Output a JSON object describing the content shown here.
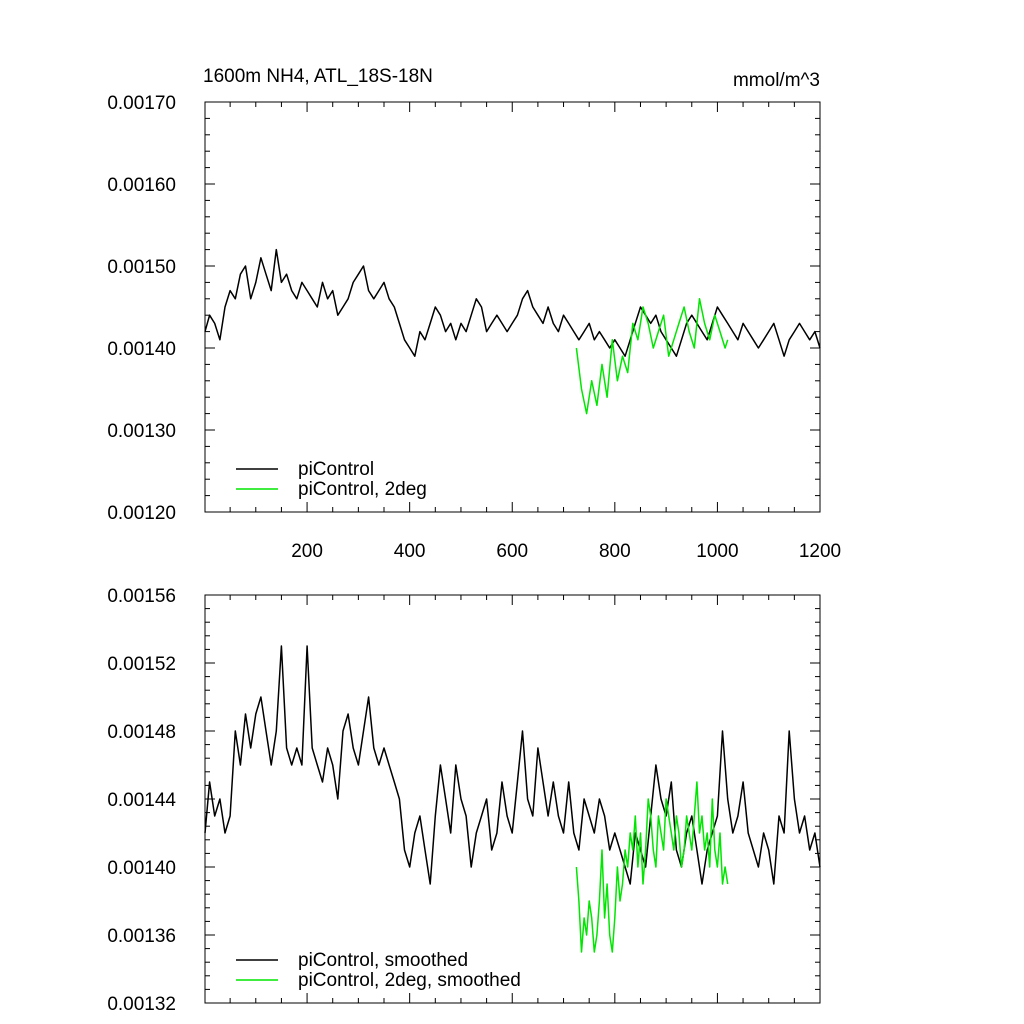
{
  "chart_data": [
    {
      "type": "line",
      "title": "1600m NH4, ATL_18S-18N",
      "units": "mmol/m^3",
      "xlim": [
        1,
        1200
      ],
      "ylim": [
        0.0012,
        0.0017
      ],
      "yticks": [
        "0.00120",
        "0.00130",
        "0.00140",
        "0.00150",
        "0.00160",
        "0.00170"
      ],
      "xticks": [
        "200",
        "400",
        "600",
        "800",
        "1000",
        "1200"
      ],
      "legend_position": "bottom-left",
      "series": [
        {
          "name": "piControl",
          "color": "#000000",
          "x": [
            1,
            10,
            20,
            30,
            40,
            50,
            60,
            70,
            80,
            90,
            100,
            110,
            120,
            130,
            140,
            150,
            160,
            170,
            180,
            190,
            200,
            210,
            220,
            230,
            240,
            250,
            260,
            270,
            280,
            290,
            300,
            310,
            320,
            330,
            340,
            350,
            360,
            370,
            380,
            390,
            400,
            410,
            420,
            430,
            440,
            450,
            460,
            470,
            480,
            490,
            500,
            510,
            520,
            530,
            540,
            550,
            560,
            570,
            580,
            590,
            600,
            610,
            620,
            630,
            640,
            650,
            660,
            670,
            680,
            690,
            700,
            710,
            720,
            730,
            740,
            750,
            760,
            770,
            780,
            790,
            800,
            810,
            820,
            830,
            840,
            850,
            860,
            870,
            880,
            890,
            900,
            910,
            920,
            930,
            940,
            950,
            960,
            970,
            980,
            990,
            1000,
            1010,
            1020,
            1030,
            1040,
            1050,
            1060,
            1070,
            1080,
            1090,
            1100,
            1110,
            1120,
            1130,
            1140,
            1150,
            1160,
            1170,
            1180,
            1190,
            1200
          ],
          "y": [
            0.00142,
            0.00144,
            0.00143,
            0.00141,
            0.00145,
            0.00147,
            0.00146,
            0.00149,
            0.0015,
            0.00146,
            0.00148,
            0.00151,
            0.00149,
            0.00147,
            0.00152,
            0.00148,
            0.00149,
            0.00147,
            0.00146,
            0.00148,
            0.00147,
            0.00146,
            0.00145,
            0.00148,
            0.00146,
            0.00147,
            0.00144,
            0.00145,
            0.00146,
            0.00148,
            0.00149,
            0.0015,
            0.00147,
            0.00146,
            0.00147,
            0.00148,
            0.00146,
            0.00145,
            0.00143,
            0.00141,
            0.0014,
            0.00139,
            0.00142,
            0.00141,
            0.00143,
            0.00145,
            0.00144,
            0.00142,
            0.00143,
            0.00141,
            0.00143,
            0.00142,
            0.00144,
            0.00146,
            0.00145,
            0.00142,
            0.00143,
            0.00144,
            0.00143,
            0.00142,
            0.00143,
            0.00144,
            0.00146,
            0.00147,
            0.00145,
            0.00144,
            0.00143,
            0.00145,
            0.00143,
            0.00142,
            0.00144,
            0.00143,
            0.00142,
            0.00141,
            0.00142,
            0.00143,
            0.00141,
            0.00142,
            0.00141,
            0.0014,
            0.00141,
            0.0014,
            0.00139,
            0.00141,
            0.00143,
            0.00145,
            0.00144,
            0.00143,
            0.00144,
            0.00142,
            0.00141,
            0.0014,
            0.00139,
            0.00141,
            0.00143,
            0.00144,
            0.00143,
            0.00142,
            0.00141,
            0.00143,
            0.00145,
            0.00144,
            0.00143,
            0.00142,
            0.00141,
            0.00143,
            0.00142,
            0.00141,
            0.0014,
            0.00141,
            0.00142,
            0.00143,
            0.00141,
            0.00139,
            0.00141,
            0.00142,
            0.00143,
            0.00142,
            0.00141,
            0.00142,
            0.0014
          ]
        },
        {
          "name": "piControl, 2deg",
          "color": "#00e600",
          "x": [
            725,
            735,
            745,
            755,
            765,
            775,
            785,
            795,
            805,
            815,
            825,
            835,
            845,
            855,
            865,
            875,
            885,
            895,
            905,
            915,
            925,
            935,
            945,
            955,
            965,
            975,
            985,
            995,
            1005,
            1015,
            1020
          ],
          "y": [
            0.0014,
            0.00135,
            0.00132,
            0.00136,
            0.00133,
            0.00138,
            0.00134,
            0.00141,
            0.00136,
            0.00139,
            0.00137,
            0.00143,
            0.00141,
            0.00145,
            0.00143,
            0.0014,
            0.00142,
            0.00144,
            0.00139,
            0.00141,
            0.00143,
            0.00145,
            0.00142,
            0.0014,
            0.00146,
            0.00143,
            0.00141,
            0.00144,
            0.00142,
            0.0014,
            0.00141
          ]
        }
      ]
    },
    {
      "type": "line",
      "title": "",
      "xlim": [
        1,
        1200
      ],
      "ylim": [
        0.00132,
        0.00156
      ],
      "yticks": [
        "0.00132",
        "0.00136",
        "0.00140",
        "0.00144",
        "0.00148",
        "0.00152",
        "0.00156"
      ],
      "legend_position": "bottom-left",
      "series": [
        {
          "name": "piControl, smoothed",
          "color": "#000000",
          "x": [
            1,
            10,
            20,
            30,
            40,
            50,
            60,
            70,
            80,
            90,
            100,
            110,
            120,
            130,
            140,
            150,
            160,
            170,
            180,
            190,
            200,
            210,
            220,
            230,
            240,
            250,
            260,
            270,
            280,
            290,
            300,
            310,
            320,
            330,
            340,
            350,
            360,
            370,
            380,
            390,
            400,
            410,
            420,
            430,
            440,
            450,
            460,
            470,
            480,
            490,
            500,
            510,
            520,
            530,
            540,
            550,
            560,
            570,
            580,
            590,
            600,
            610,
            620,
            630,
            640,
            650,
            660,
            670,
            680,
            690,
            700,
            710,
            720,
            730,
            740,
            750,
            760,
            770,
            780,
            790,
            800,
            810,
            820,
            830,
            840,
            850,
            860,
            870,
            880,
            890,
            900,
            910,
            920,
            930,
            940,
            950,
            960,
            970,
            980,
            990,
            1000,
            1010,
            1020,
            1030,
            1040,
            1050,
            1060,
            1070,
            1080,
            1090,
            1100,
            1110,
            1120,
            1130,
            1140,
            1150,
            1160,
            1170,
            1180,
            1190,
            1200
          ],
          "y": [
            0.00142,
            0.00145,
            0.00143,
            0.00144,
            0.00142,
            0.00143,
            0.00148,
            0.00146,
            0.00149,
            0.00147,
            0.00149,
            0.0015,
            0.00148,
            0.00146,
            0.00148,
            0.00153,
            0.00147,
            0.00146,
            0.00147,
            0.00146,
            0.00153,
            0.00147,
            0.00146,
            0.00145,
            0.00147,
            0.00146,
            0.00144,
            0.00148,
            0.00149,
            0.00147,
            0.00146,
            0.00148,
            0.0015,
            0.00147,
            0.00146,
            0.00147,
            0.00146,
            0.00145,
            0.00144,
            0.00141,
            0.0014,
            0.00142,
            0.00143,
            0.00141,
            0.00139,
            0.00143,
            0.00146,
            0.00144,
            0.00142,
            0.00146,
            0.00144,
            0.00143,
            0.0014,
            0.00142,
            0.00143,
            0.00144,
            0.00141,
            0.00142,
            0.00145,
            0.00143,
            0.00142,
            0.00145,
            0.00148,
            0.00144,
            0.00143,
            0.00147,
            0.00145,
            0.00143,
            0.00145,
            0.00143,
            0.00142,
            0.00145,
            0.00142,
            0.00141,
            0.00144,
            0.00143,
            0.00142,
            0.00144,
            0.00143,
            0.00141,
            0.00142,
            0.00141,
            0.0014,
            0.00139,
            0.00142,
            0.00141,
            0.0014,
            0.00143,
            0.00146,
            0.00144,
            0.00143,
            0.00145,
            0.00141,
            0.0014,
            0.00142,
            0.00143,
            0.00141,
            0.00139,
            0.00141,
            0.00142,
            0.00143,
            0.00148,
            0.00144,
            0.00142,
            0.00143,
            0.00145,
            0.00142,
            0.00141,
            0.0014,
            0.00142,
            0.00141,
            0.00139,
            0.00143,
            0.00142,
            0.00148,
            0.00144,
            0.00142,
            0.00143,
            0.00141,
            0.00142,
            0.0014
          ]
        },
        {
          "name": "piControl, 2deg, smoothed",
          "color": "#00e600",
          "x": [
            725,
            730,
            735,
            740,
            745,
            750,
            755,
            760,
            765,
            770,
            775,
            780,
            785,
            790,
            795,
            800,
            805,
            810,
            815,
            820,
            825,
            830,
            835,
            840,
            845,
            850,
            855,
            860,
            865,
            870,
            875,
            880,
            885,
            890,
            895,
            900,
            905,
            910,
            915,
            920,
            925,
            930,
            935,
            940,
            945,
            950,
            955,
            960,
            965,
            970,
            975,
            980,
            985,
            990,
            995,
            1000,
            1005,
            1010,
            1015,
            1020
          ],
          "y": [
            0.0014,
            0.00138,
            0.00135,
            0.00137,
            0.00136,
            0.00138,
            0.00137,
            0.00135,
            0.00136,
            0.00138,
            0.00141,
            0.00137,
            0.00139,
            0.00136,
            0.00135,
            0.00137,
            0.0014,
            0.00138,
            0.00139,
            0.00141,
            0.0014,
            0.00142,
            0.00141,
            0.00143,
            0.0014,
            0.00142,
            0.00139,
            0.00141,
            0.00144,
            0.00143,
            0.00141,
            0.0014,
            0.00143,
            0.00142,
            0.00141,
            0.00144,
            0.00143,
            0.00142,
            0.00141,
            0.00143,
            0.00142,
            0.0014,
            0.00141,
            0.00143,
            0.00142,
            0.00141,
            0.00143,
            0.00145,
            0.00142,
            0.00143,
            0.00141,
            0.00142,
            0.0014,
            0.00144,
            0.00141,
            0.0014,
            0.00142,
            0.00139,
            0.0014,
            0.00139
          ]
        }
      ]
    }
  ]
}
